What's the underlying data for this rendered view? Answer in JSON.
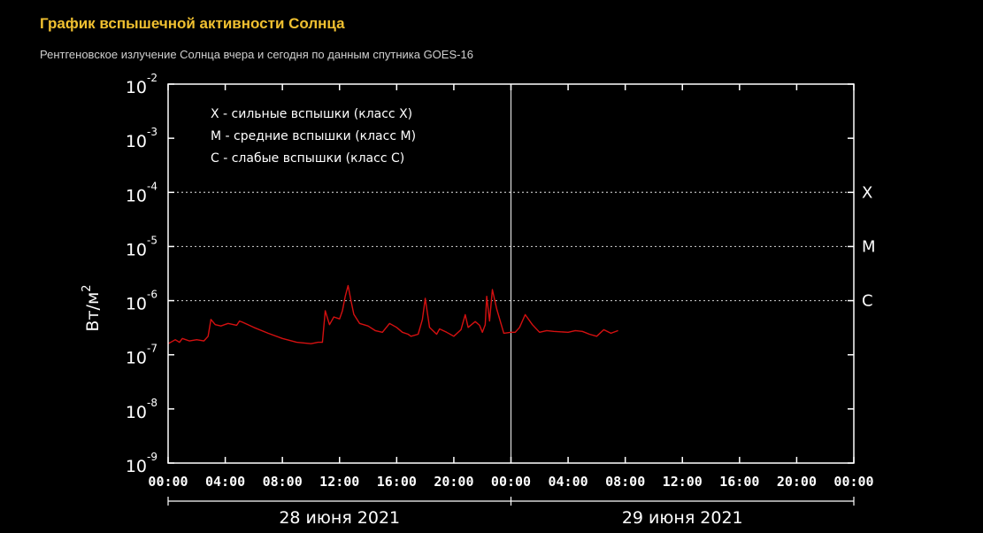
{
  "header": {
    "title": "График вспышечной активности Солнца",
    "subtitle": "Рентгеновское излучение Солнца вчера и сегодня по данным спутника GOES-16"
  },
  "colors": {
    "background": "#000000",
    "title": "#f0c030",
    "series": "#d41010",
    "axes": "#ffffff",
    "subtitle": "#cfcfcf"
  },
  "chart_data": {
    "type": "line",
    "y_scale": "log",
    "ylim": [
      1e-09,
      0.01
    ],
    "xlim_hours": [
      0,
      48
    ],
    "ylabel_base": "Вт/м",
    "ylabel_exp": "2",
    "y_ticks": [
      {
        "base": "10",
        "exp": "-2",
        "value": 0.01
      },
      {
        "base": "10",
        "exp": "-3",
        "value": 0.001
      },
      {
        "base": "10",
        "exp": "-4",
        "value": 0.0001
      },
      {
        "base": "10",
        "exp": "-5",
        "value": 1e-05
      },
      {
        "base": "10",
        "exp": "-6",
        "value": 1e-06
      },
      {
        "base": "10",
        "exp": "-7",
        "value": 1e-07
      },
      {
        "base": "10",
        "exp": "-8",
        "value": 1e-08
      },
      {
        "base": "10",
        "exp": "-9",
        "value": 1e-09
      }
    ],
    "x_tick_labels": [
      "00:00",
      "04:00",
      "08:00",
      "12:00",
      "16:00",
      "20:00",
      "00:00",
      "04:00",
      "08:00",
      "12:00",
      "16:00",
      "20:00",
      "00:00"
    ],
    "day_labels": [
      "28 июня 2021",
      "29 июня 2021"
    ],
    "day_divider_hour": 24,
    "class_thresholds": [
      {
        "label": "X",
        "value": 0.0001
      },
      {
        "label": "M",
        "value": 1e-05
      },
      {
        "label": "C",
        "value": 1e-06
      }
    ],
    "legend": [
      "X - сильные вспышки (класс X)",
      "M - средние вспышки (класс M)",
      "C  - слабые вспышки (класс C)"
    ],
    "series": [
      {
        "x_hours": [
          0,
          0.5,
          0.8,
          1.0,
          1.5,
          2.0,
          2.5,
          2.8,
          3.0,
          3.3,
          3.7,
          4.2,
          4.8,
          5.0,
          5.2,
          6.0,
          7.0,
          8.0,
          9.0,
          10.0,
          10.5,
          10.8,
          11.0,
          11.3,
          11.6,
          12.0,
          12.2,
          12.4,
          12.6,
          12.8,
          13.0,
          13.4,
          14.0,
          14.5,
          15.0,
          15.5,
          16.0,
          16.4,
          16.8,
          17.0,
          17.5,
          17.8,
          18.0,
          18.3,
          18.8,
          19.0,
          19.5,
          20.0,
          20.5,
          20.8,
          21.0,
          21.5,
          21.8,
          22.0,
          22.2,
          22.3,
          22.5,
          22.7,
          23.0,
          23.5,
          24.0,
          24.3,
          24.6,
          25.0,
          25.5,
          26.0,
          26.5,
          27.0,
          28.0,
          28.5,
          29.0,
          29.5,
          30.0,
          30.5,
          31.0,
          31.5
        ],
        "values": [
          1.6e-07,
          1.9e-07,
          1.7e-07,
          2e-07,
          1.8e-07,
          1.9e-07,
          1.8e-07,
          2.2e-07,
          4.5e-07,
          3.6e-07,
          3.4e-07,
          3.8e-07,
          3.5e-07,
          4.2e-07,
          4e-07,
          3.2e-07,
          2.5e-07,
          2e-07,
          1.7e-07,
          1.6e-07,
          1.7e-07,
          1.7e-07,
          6.5e-07,
          3.6e-07,
          5e-07,
          4.6e-07,
          6.5e-07,
          1.2e-06,
          1.9e-06,
          1e-06,
          5.6e-07,
          3.8e-07,
          3.4e-07,
          2.8e-07,
          2.6e-07,
          3.8e-07,
          3.2e-07,
          2.6e-07,
          2.4e-07,
          2.2e-07,
          2.4e-07,
          4.5e-07,
          1.1e-06,
          3.2e-07,
          2.4e-07,
          3e-07,
          2.6e-07,
          2.2e-07,
          2.9e-07,
          5.5e-07,
          3.2e-07,
          4.1e-07,
          3.5e-07,
          2.6e-07,
          3.6e-07,
          1.2e-06,
          4.2e-07,
          1.6e-06,
          7e-07,
          2.5e-07,
          2.6e-07,
          2.6e-07,
          3.2e-07,
          5.5e-07,
          3.6e-07,
          2.6e-07,
          2.8e-07,
          2.7e-07,
          2.6e-07,
          2.8e-07,
          2.7e-07,
          2.4e-07,
          2.2e-07,
          2.9e-07,
          2.5e-07,
          2.8e-07
        ]
      }
    ]
  }
}
